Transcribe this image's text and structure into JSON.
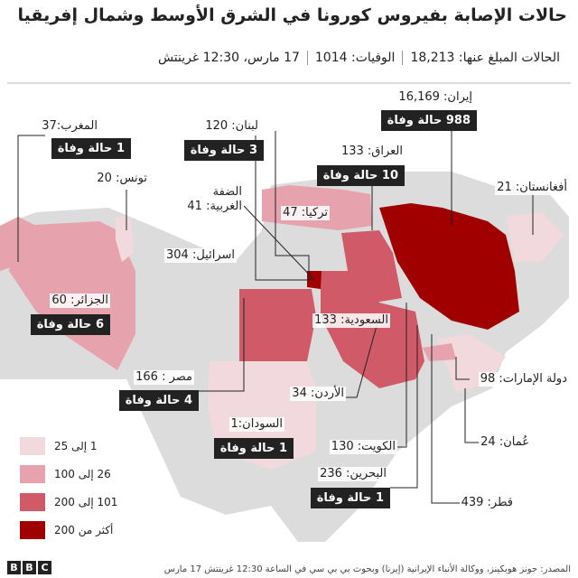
{
  "header": {
    "title": "حالات الإصابة بفيروس كورونا في الشرق الأوسط وشمال إفريقيا",
    "stats": [
      "الحالات المبلغ عنها: 18,213",
      "الوفيات: 1014",
      "17 مارس، 12:30 غرينتش"
    ]
  },
  "countries": [
    {
      "label": "المغرب:37",
      "deaths": "1 حالة وفاة"
    },
    {
      "label": "تونس: 20"
    },
    {
      "label": "الجزائر: 60",
      "deaths": "6 حالة وفاة"
    },
    {
      "label": "مصر : 166",
      "deaths": "4 حالة وفاة"
    },
    {
      "label": "السودان:1",
      "deaths": "1 حالة وفاة"
    },
    {
      "label": "لبنان: 120",
      "deaths": "3 حالة وفاة"
    },
    {
      "label": "الضفة\nالغربية: 41"
    },
    {
      "label": "تركيا: 47"
    },
    {
      "label": "اسرائيل: 304"
    },
    {
      "label": "العراق: 133",
      "deaths": "10 حالة وفاة"
    },
    {
      "label": "إيران: 16,169",
      "deaths": "988 حالة وفاة"
    },
    {
      "label": "أفغانستان: 21"
    },
    {
      "label": "السعودية: 133"
    },
    {
      "label": "الأردن: 34"
    },
    {
      "label": "دولة الإمارات: 98"
    },
    {
      "label": "عُمان: 24"
    },
    {
      "label": "الكويت: 130"
    },
    {
      "label": "البحرين: 236",
      "deaths": "1 حالة وفاة"
    },
    {
      "label": "قطر: 439"
    }
  ],
  "legend": [
    {
      "label": "1 إلى 25",
      "color": "#f2d9dd"
    },
    {
      "label": "26 إلى 100",
      "color": "#e6a3ad"
    },
    {
      "label": "101 إلى 200",
      "color": "#d05a68"
    },
    {
      "label": "أكثر من 200",
      "color": "#a00000"
    }
  ],
  "footer": {
    "source": "المصدر: جونز هوبكينز، ووكالة الأنباء الإيرانية (إيرنا) وبحوث بي بي سي في الساعة 12:30 غرينتش 17 مارس",
    "logo": [
      "B",
      "B",
      "C"
    ]
  }
}
